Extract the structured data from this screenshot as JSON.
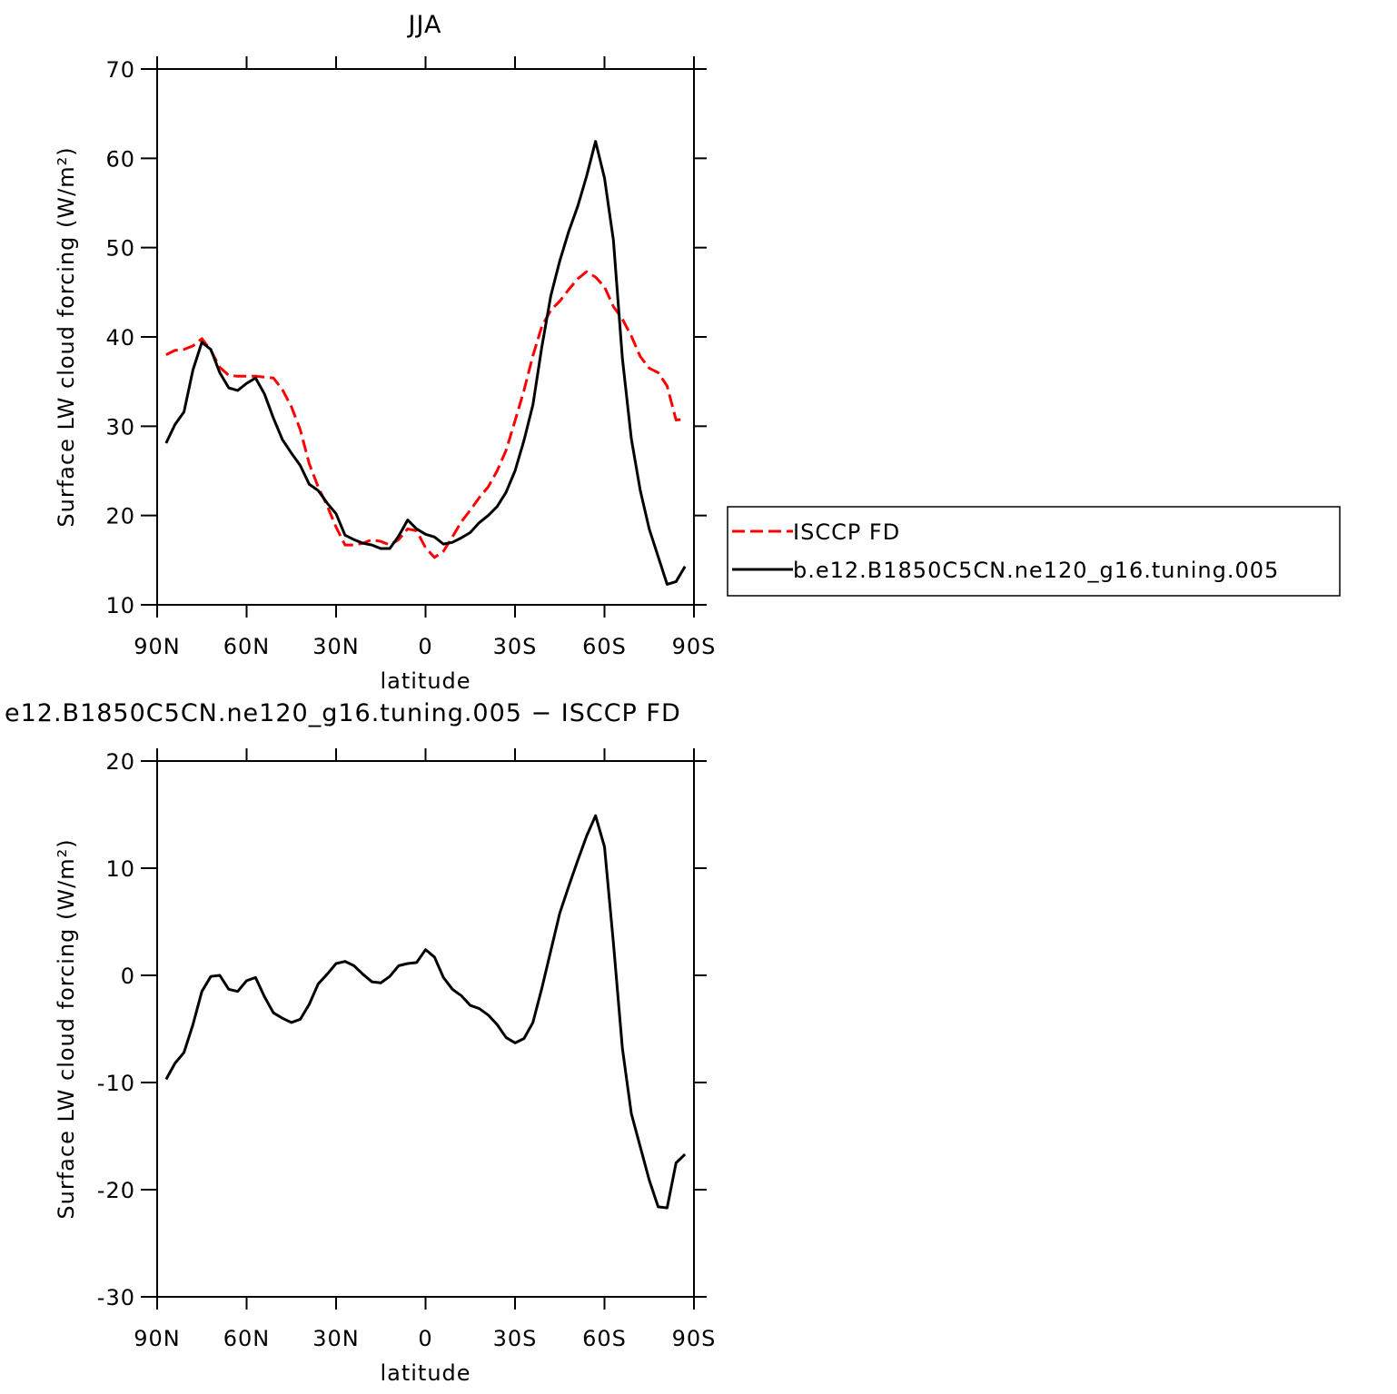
{
  "chart_data": [
    {
      "type": "line",
      "title": "JJA",
      "xlabel": "latitude",
      "ylabel": "Surface LW cloud forcing (W/m²)",
      "x": [
        87,
        84,
        81,
        78,
        75,
        72,
        69,
        66,
        63,
        60,
        57,
        54,
        51,
        48,
        45,
        42,
        39,
        36,
        33,
        30,
        27,
        24,
        21,
        18,
        15,
        12,
        9,
        6,
        3,
        0,
        -3,
        -6,
        -9,
        -12,
        -15,
        -18,
        -21,
        -24,
        -27,
        -30,
        -33,
        -36,
        -39,
        -42,
        -45,
        -48,
        -51,
        -54,
        -57,
        -60,
        -63,
        -66,
        -69,
        -72,
        -75,
        -78,
        -81,
        -84,
        -87
      ],
      "series": [
        {
          "name": "ISCCP FD",
          "color": "#ff0000",
          "linestyle": "dashed",
          "values": [
            38.0,
            38.5,
            38.6,
            39.0,
            39.8,
            38.5,
            36.6,
            35.7,
            35.6,
            35.6,
            35.6,
            35.5,
            35.4,
            34.1,
            32.2,
            29.6,
            25.8,
            23.2,
            21.1,
            18.7,
            16.7,
            16.7,
            16.9,
            17.3,
            17.1,
            16.7,
            17.3,
            18.5,
            18.3,
            16.4,
            15.3,
            16.0,
            17.6,
            19.3,
            20.6,
            22.0,
            23.2,
            25.0,
            27.3,
            30.6,
            34.0,
            37.9,
            41.2,
            43.0,
            44.0,
            45.3,
            46.5,
            47.3,
            46.7,
            45.6,
            43.4,
            42.0,
            40.1,
            37.8,
            36.5,
            36.0,
            34.5,
            30.7,
            30.8
          ]
        },
        {
          "name": "b.e12.B1850C5CN.ne120_g16.tuning.005",
          "color": "#000000",
          "linestyle": "solid",
          "values": [
            28.1,
            30.2,
            31.6,
            36.3,
            39.4,
            38.6,
            36.0,
            34.3,
            34.0,
            34.8,
            35.4,
            33.6,
            30.9,
            28.5,
            27.0,
            25.6,
            23.5,
            22.8,
            21.4,
            20.2,
            17.8,
            17.3,
            16.9,
            16.7,
            16.3,
            16.3,
            17.7,
            19.5,
            18.5,
            17.9,
            17.6,
            16.8,
            17.0,
            17.5,
            18.1,
            19.2,
            20.0,
            21.0,
            22.6,
            25.0,
            28.4,
            32.4,
            38.9,
            44.6,
            48.5,
            51.8,
            54.6,
            58.0,
            61.9,
            57.8,
            50.8,
            37.6,
            28.6,
            22.8,
            18.5,
            15.4,
            12.3,
            12.6,
            14.3
          ]
        }
      ],
      "xlim": [
        90,
        -90
      ],
      "xticks": [
        {
          "value": 90,
          "label": "90N"
        },
        {
          "value": 60,
          "label": "60N"
        },
        {
          "value": 30,
          "label": "30N"
        },
        0,
        {
          "value": -30,
          "label": "30S"
        },
        {
          "value": -60,
          "label": "60S"
        },
        {
          "value": -90,
          "label": "90S"
        }
      ],
      "ylim": [
        10,
        70
      ],
      "yticks": [
        10,
        20,
        30,
        40,
        50,
        60,
        70
      ],
      "legend": "right"
    },
    {
      "type": "line",
      "title": "e12.B1850C5CN.ne120_g16.tuning.005 − ISCCP FD",
      "xlabel": "latitude",
      "ylabel": "Surface LW cloud forcing (W/m²)",
      "x": [
        87,
        84,
        81,
        78,
        75,
        72,
        69,
        66,
        63,
        60,
        57,
        54,
        51,
        48,
        45,
        42,
        39,
        36,
        33,
        30,
        27,
        24,
        21,
        18,
        15,
        12,
        9,
        6,
        3,
        0,
        -3,
        -6,
        -9,
        -12,
        -15,
        -18,
        -21,
        -24,
        -27,
        -30,
        -33,
        -36,
        -39,
        -42,
        -45,
        -48,
        -51,
        -54,
        -57,
        -60,
        -63,
        -66,
        -69,
        -72,
        -75,
        -78,
        -81,
        -84,
        -87
      ],
      "color": "#000000",
      "values": [
        -9.7,
        -8.2,
        -7.2,
        -4.6,
        -1.5,
        -0.1,
        0,
        -1.3,
        -1.5,
        -0.5,
        -0.2,
        -2.0,
        -3.5,
        -4.0,
        -4.4,
        -4.1,
        -2.7,
        -0.8,
        0.1,
        1.1,
        1.3,
        0.9,
        0.1,
        -0.6,
        -0.7,
        -0.1,
        0.9,
        1.1,
        1.2,
        2.4,
        1.7,
        -0.2,
        -1.3,
        -1.9,
        -2.8,
        -3.1,
        -3.7,
        -4.6,
        -5.8,
        -6.3,
        -5.9,
        -4.4,
        -1.2,
        2.3,
        5.8,
        8.3,
        10.7,
        13.0,
        14.9,
        12.0,
        3.0,
        -6.8,
        -12.9,
        -16.0,
        -19.1,
        -21.6,
        -21.7,
        -17.5,
        -16.7
      ],
      "xlim": [
        90,
        -90
      ],
      "xticks": [
        {
          "value": 90,
          "label": "90N"
        },
        {
          "value": 60,
          "label": "60N"
        },
        {
          "value": 30,
          "label": "30N"
        },
        0,
        {
          "value": -30,
          "label": "30S"
        },
        {
          "value": -60,
          "label": "60S"
        },
        {
          "value": -90,
          "label": "90S"
        }
      ],
      "ylim": [
        -30,
        20
      ],
      "yticks": [
        -30,
        -20,
        -10,
        0,
        10,
        20
      ]
    }
  ]
}
